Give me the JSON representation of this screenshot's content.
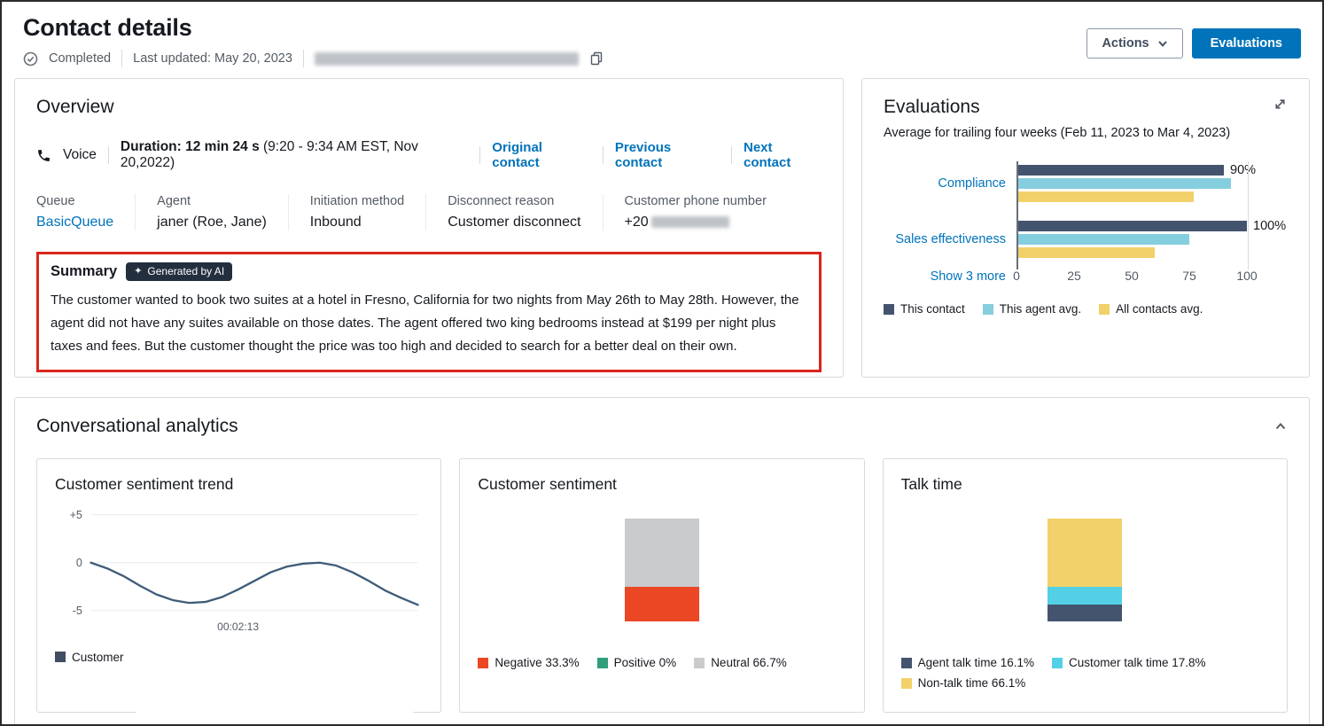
{
  "header": {
    "title": "Contact details",
    "status": "Completed",
    "last_updated": "Last updated: May 20, 2023",
    "actions_button": "Actions",
    "evaluations_button": "Evaluations"
  },
  "overview": {
    "title": "Overview",
    "channel": "Voice",
    "duration_label": "Duration:",
    "duration_value": "12 min 24 s",
    "duration_detail": "(9:20 - 9:34 AM EST, Nov 20,2022)",
    "links": {
      "original": "Original contact",
      "previous": "Previous contact",
      "next": "Next contact"
    },
    "fields": [
      {
        "label": "Queue",
        "value": "BasicQueue"
      },
      {
        "label": "Agent",
        "value": "janer (Roe, Jane)"
      },
      {
        "label": "Initiation method",
        "value": "Inbound"
      },
      {
        "label": "Disconnect reason",
        "value": "Customer disconnect"
      },
      {
        "label": "Customer phone number",
        "value": "+20"
      }
    ],
    "summary": {
      "title": "Summary",
      "badge": "Generated by AI",
      "text": "The customer wanted to book two suites at a hotel in Fresno, California for two nights from May 26th to May 28th. However, the agent did not have any suites available on those dates. The agent offered two king bedrooms instead at $199 per night plus taxes and fees. But the customer thought the price was too high and decided to search for a better deal on their own."
    }
  },
  "evaluations_panel": {
    "title": "Evaluations",
    "subtitle": "Average for trailing four weeks (Feb 11, 2023 to Mar 4, 2023)",
    "show_more": "Show 3 more",
    "legend": [
      {
        "label": "This contact",
        "color": "#44546e"
      },
      {
        "label": "This agent avg.",
        "color": "#85cede"
      },
      {
        "label": "All contacts avg.",
        "color": "#f2d16b"
      }
    ]
  },
  "conversational": {
    "title": "Conversational analytics",
    "trend_legend": [
      {
        "label": "Customer",
        "color": "#414d63"
      }
    ]
  },
  "chart_data": [
    {
      "id": "evaluations",
      "type": "bar",
      "orientation": "horizontal",
      "title": "Evaluations",
      "subtitle": "Average for trailing four weeks (Feb 11, 2023 to Mar 4, 2023)",
      "categories": [
        "Compliance",
        "Sales effectiveness"
      ],
      "series": [
        {
          "name": "This contact",
          "color": "#44546e",
          "values": [
            90,
            100
          ]
        },
        {
          "name": "This agent avg.",
          "color": "#85cede",
          "values": [
            93,
            75
          ]
        },
        {
          "name": "All contacts avg.",
          "color": "#f2d16b",
          "values": [
            77,
            60
          ]
        }
      ],
      "value_labels": [
        "90%",
        "100%"
      ],
      "xlim": [
        0,
        100
      ],
      "xticks": [
        0,
        25,
        50,
        75,
        100
      ],
      "legend_position": "bottom"
    },
    {
      "id": "customer_sentiment_trend",
      "type": "line",
      "title": "Customer sentiment trend",
      "ylim": [
        -5,
        5
      ],
      "yticks": [
        {
          "label": "+5",
          "value": 5
        },
        {
          "label": "0",
          "value": 0
        },
        {
          "label": "-5",
          "value": -5
        }
      ],
      "x_annotation": {
        "label": "00:02:13",
        "x_frac": 0.45
      },
      "series": [
        {
          "name": "Customer",
          "color": "#3f5c78",
          "points": [
            [
              0,
              0
            ],
            [
              0.05,
              -0.6
            ],
            [
              0.1,
              -1.4
            ],
            [
              0.15,
              -2.4
            ],
            [
              0.2,
              -3.3
            ],
            [
              0.25,
              -3.9
            ],
            [
              0.3,
              -4.2
            ],
            [
              0.35,
              -4.1
            ],
            [
              0.4,
              -3.6
            ],
            [
              0.45,
              -2.8
            ],
            [
              0.5,
              -1.9
            ],
            [
              0.55,
              -1.0
            ],
            [
              0.6,
              -0.4
            ],
            [
              0.65,
              -0.1
            ],
            [
              0.7,
              0
            ],
            [
              0.75,
              -0.3
            ],
            [
              0.8,
              -1.0
            ],
            [
              0.85,
              -1.9
            ],
            [
              0.9,
              -2.9
            ],
            [
              0.95,
              -3.7
            ],
            [
              1,
              -4.4
            ]
          ]
        }
      ]
    },
    {
      "id": "customer_sentiment",
      "type": "stacked-bar",
      "title": "Customer sentiment",
      "segments_top_to_bottom": [
        {
          "name": "Neutral",
          "pct": 66.7,
          "color": "#c9cbcd"
        },
        {
          "name": "Negative",
          "pct": 33.3,
          "color": "#eb4724"
        }
      ],
      "legend": [
        {
          "label": "Negative 33.3%",
          "color": "#eb4724"
        },
        {
          "label": "Positive 0%",
          "color": "#2f9e7d"
        },
        {
          "label": "Neutral 66.7%",
          "color": "#c9cbcd"
        }
      ]
    },
    {
      "id": "talk_time",
      "type": "stacked-bar",
      "title": "Talk time",
      "segments_top_to_bottom": [
        {
          "name": "Non-talk time",
          "pct": 66.1,
          "color": "#f2d16b"
        },
        {
          "name": "Customer talk time",
          "pct": 17.8,
          "color": "#53d0e5"
        },
        {
          "name": "Agent talk time",
          "pct": 16.1,
          "color": "#44546e"
        }
      ],
      "legend": [
        {
          "label": "Agent talk time 16.1%",
          "color": "#44546e"
        },
        {
          "label": "Customer talk time 17.8%",
          "color": "#53d0e5"
        },
        {
          "label": "Non-talk time 66.1%",
          "color": "#f2d16b"
        }
      ]
    }
  ]
}
